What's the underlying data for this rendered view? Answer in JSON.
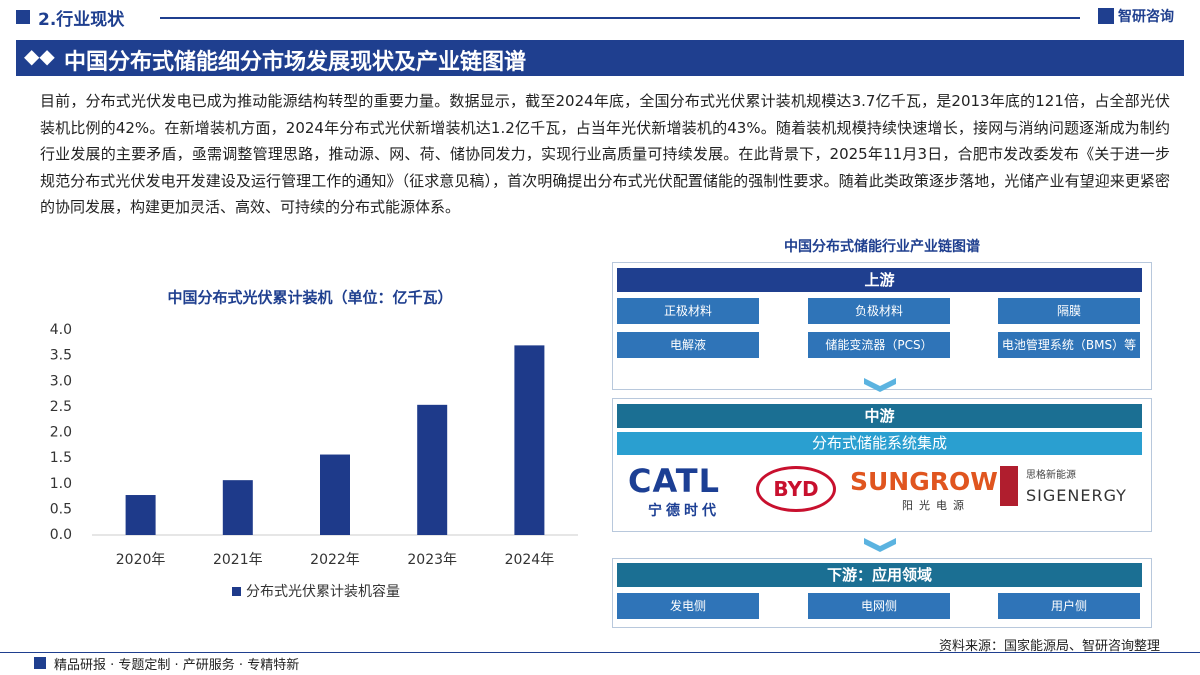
{
  "header": {
    "section": "2.行业现状",
    "brand": "智研咨询"
  },
  "title": "中国分布式储能细分市场发展现状及产业链图谱",
  "paragraph": "目前，分布式光伏发电已成为推动能源结构转型的重要力量。数据显示，截至2024年底，全国分布式光伏累计装机规模达3.7亿千瓦，是2013年底的121倍，占全部光伏装机比例的42%。在新增装机方面，2024年分布式光伏新增装机达1.2亿千瓦，占当年光伏新增装机的43%。随着装机规模持续快速增长，接网与消纳问题逐渐成为制约行业发展的主要矛盾，亟需调整管理思路，推动源、网、荷、储协同发力，实现行业高质量可持续发展。在此背景下，2025年11月3日，合肥市发改委发布《关于进一步规范分布式光伏发电开发建设及运行管理工作的通知》（征求意见稿），首次明确提出分布式光伏配置储能的强制性要求。随着此类政策逐步落地，光储产业有望迎来更紧密的协同发展，构建更加灵活、高效、可持续的分布式能源体系。",
  "chart_data": {
    "type": "bar",
    "title": "中国分布式光伏累计装机（单位：亿千瓦）",
    "categories": [
      "2020年",
      "2021年",
      "2022年",
      "2023年",
      "2024年"
    ],
    "series": [
      {
        "name": "分布式光伏累计装机容量",
        "color": "#1e3a8a",
        "values": [
          0.78,
          1.07,
          1.57,
          2.54,
          3.7
        ]
      }
    ],
    "ylim": [
      0,
      4
    ],
    "yticks": [
      {
        "value": 0,
        "label": "0.0"
      },
      0.5,
      {
        "value": 1,
        "label": "1.0"
      },
      1.5,
      {
        "value": 2,
        "label": "2.0"
      },
      2.5,
      {
        "value": 3,
        "label": "3.0"
      },
      3.5,
      {
        "value": 4,
        "label": "4.0"
      }
    ],
    "grid": false
  },
  "chain": {
    "title": "中国分布式储能行业产业链图谱",
    "upstream": {
      "label": "上游",
      "items": [
        "正极材料",
        "负极材料",
        "隔膜",
        "电解液",
        "储能变流器（PCS）",
        "电池管理系统（BMS）等"
      ]
    },
    "midstream": {
      "label": "中游",
      "subtitle": "分布式储能系统集成",
      "logos": [
        {
          "name": "CATL",
          "sub": "宁德时代"
        },
        {
          "name": "BYD"
        },
        {
          "name": "SUNGROW",
          "sub": "阳光电源"
        },
        {
          "name": "SIGENERGY",
          "sub": "思格新能源"
        }
      ]
    },
    "downstream": {
      "label": "下游：应用领域",
      "items": [
        "发电侧",
        "电网侧",
        "用户侧"
      ]
    }
  },
  "source": "资料来源：国家能源局、智研咨询整理",
  "footer": "精品研报 · 专题定制 · 产研服务 · 专精特新"
}
